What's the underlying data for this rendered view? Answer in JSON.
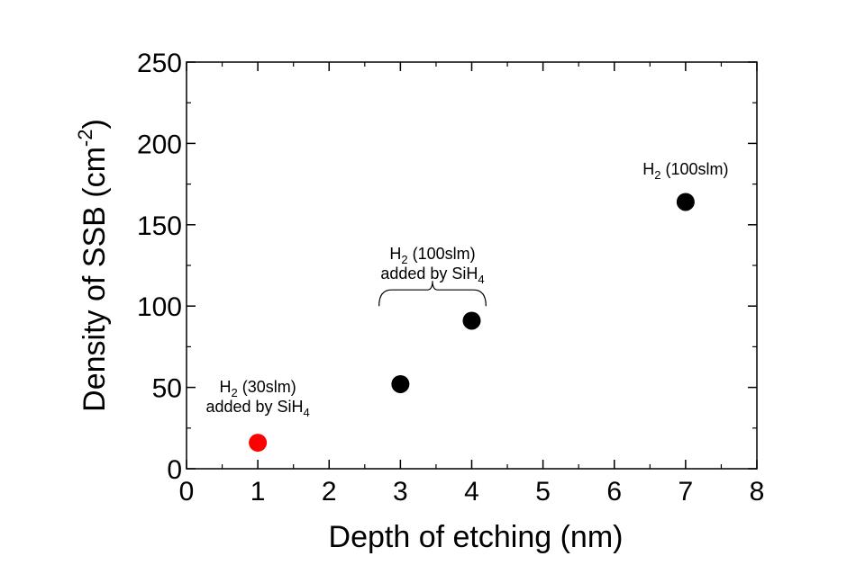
{
  "chart_data": {
    "type": "scatter",
    "title": "",
    "xlabel": "Depth of etching (nm)",
    "ylabel": "Density of SSB (cm-2)",
    "ylabel_parts": {
      "main": "Density of SSB (cm",
      "sup": "-2",
      "close": ")"
    },
    "xlim": [
      0,
      8
    ],
    "ylim": [
      0,
      250
    ],
    "xticks": [
      0,
      1,
      2,
      3,
      4,
      5,
      6,
      7,
      8
    ],
    "yticks": [
      0,
      50,
      100,
      150,
      200,
      250
    ],
    "grid": false,
    "series": [
      {
        "color": "#ff0000",
        "x": [
          1
        ],
        "y": [
          16
        ]
      },
      {
        "color": "#000000",
        "x": [
          3,
          4,
          7
        ],
        "y": [
          52,
          91,
          164
        ]
      }
    ],
    "annotations": [
      {
        "lines": [
          [
            {
              "t": "H"
            },
            {
              "t": "2",
              "sub": true
            },
            {
              "t": " (30slm)"
            }
          ],
          [
            {
              "t": "added by SiH"
            },
            {
              "t": "4",
              "sub": true
            }
          ]
        ],
        "x": 1,
        "y": 47
      },
      {
        "lines": [
          [
            {
              "t": "H"
            },
            {
              "t": "2",
              "sub": true
            },
            {
              "t": " (100slm)"
            }
          ],
          [
            {
              "t": "added by SiH"
            },
            {
              "t": "4",
              "sub": true
            }
          ]
        ],
        "x": 3.45,
        "y": 129,
        "bracket": {
          "x0": 2.7,
          "x1": 4.2,
          "y": 100
        }
      },
      {
        "lines": [
          [
            {
              "t": "H"
            },
            {
              "t": "2",
              "sub": true
            },
            {
              "t": " (100slm)"
            }
          ]
        ],
        "x": 7,
        "y": 181
      }
    ]
  }
}
